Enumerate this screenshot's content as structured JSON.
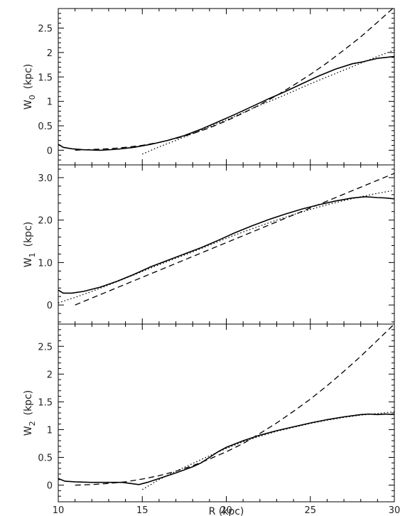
{
  "chart_data": [
    {
      "type": "line",
      "panel": "top",
      "ylabel_main": "W",
      "ylabel_sub": "0",
      "ylabel_unit": "(kpc)",
      "xlim": [
        10,
        30
      ],
      "ylim": [
        -0.3,
        2.9
      ],
      "yticks": [
        0,
        0.5,
        1,
        1.5,
        2,
        2.5
      ],
      "ytick_labels": [
        "0",
        "0.5",
        "1",
        "1.5",
        "2",
        "2.5"
      ],
      "ygrid": false,
      "series": [
        {
          "style": "solid",
          "x": [
            10,
            10.3,
            10.8,
            11.5,
            12.5,
            13.5,
            14.5,
            15.5,
            16.5,
            17.5,
            18.5,
            19.5,
            20.5,
            21.5,
            22.5,
            23.5,
            24.5,
            25.5,
            26.5,
            27.5,
            28,
            28.5,
            29,
            29.5,
            30
          ],
          "y": [
            0.12,
            0.06,
            0.03,
            0.01,
            0.0,
            0.02,
            0.06,
            0.12,
            0.2,
            0.3,
            0.43,
            0.58,
            0.73,
            0.89,
            1.05,
            1.2,
            1.36,
            1.52,
            1.66,
            1.77,
            1.8,
            1.84,
            1.88,
            1.9,
            1.92
          ]
        },
        {
          "style": "dashed",
          "x": [
            11,
            12,
            13,
            14,
            15,
            16,
            17,
            18,
            19,
            20,
            21,
            22,
            23,
            24,
            25,
            26,
            27,
            28,
            29,
            30
          ],
          "y": [
            0.0,
            0.015,
            0.03,
            0.06,
            0.1,
            0.16,
            0.24,
            0.34,
            0.46,
            0.6,
            0.76,
            0.93,
            1.12,
            1.33,
            1.55,
            1.79,
            2.05,
            2.32,
            2.62,
            2.93
          ]
        },
        {
          "style": "dotted",
          "x": [
            15,
            16,
            17,
            18,
            19,
            20,
            21,
            22,
            23,
            24,
            25,
            26,
            27,
            28,
            29,
            30
          ],
          "y": [
            -0.08,
            0.07,
            0.2,
            0.34,
            0.48,
            0.62,
            0.77,
            0.92,
            1.06,
            1.21,
            1.36,
            1.5,
            1.64,
            1.78,
            1.92,
            2.05
          ]
        }
      ]
    },
    {
      "type": "line",
      "panel": "middle",
      "ylabel_main": "W",
      "ylabel_sub": "1",
      "ylabel_unit": "(kpc)",
      "xlim": [
        10,
        30
      ],
      "ylim": [
        -0.45,
        3.3
      ],
      "yticks": [
        0,
        1.0,
        2.0,
        3.0
      ],
      "ytick_labels": [
        "0",
        "1.0",
        "2.0",
        "3.0"
      ],
      "ygrid": false,
      "series": [
        {
          "style": "solid",
          "x": [
            10,
            10.3,
            10.8,
            11.5,
            12.5,
            13.5,
            14.5,
            15.5,
            16.5,
            17.5,
            18.5,
            19.5,
            20.5,
            21.5,
            22.5,
            23.5,
            24.5,
            25.5,
            26.5,
            27.5,
            28.3,
            29,
            29.5,
            30
          ],
          "y": [
            0.35,
            0.28,
            0.28,
            0.32,
            0.42,
            0.56,
            0.72,
            0.9,
            1.05,
            1.2,
            1.35,
            1.52,
            1.7,
            1.86,
            2.01,
            2.14,
            2.26,
            2.36,
            2.45,
            2.52,
            2.55,
            2.53,
            2.52,
            2.5
          ]
        },
        {
          "style": "dashed",
          "x": [
            11,
            30
          ],
          "y": [
            0.0,
            3.1
          ]
        },
        {
          "style": "dotted",
          "x": [
            10,
            11,
            12,
            13,
            14,
            15,
            16,
            17,
            18,
            19,
            20,
            21,
            22,
            23,
            24,
            25,
            26,
            27,
            28,
            29,
            30
          ],
          "y": [
            0.05,
            0.18,
            0.32,
            0.47,
            0.63,
            0.79,
            0.95,
            1.1,
            1.25,
            1.41,
            1.57,
            1.72,
            1.86,
            2.0,
            2.13,
            2.25,
            2.36,
            2.46,
            2.55,
            2.63,
            2.7
          ]
        }
      ]
    },
    {
      "type": "line",
      "panel": "bottom",
      "ylabel_main": "W",
      "ylabel_sub": "2",
      "ylabel_unit": "(kpc)",
      "xlim": [
        10,
        30
      ],
      "ylim": [
        -0.3,
        2.9
      ],
      "yticks": [
        0,
        0.5,
        1,
        1.5,
        2,
        2.5
      ],
      "ytick_labels": [
        "0",
        "0.5",
        "1",
        "1.5",
        "2",
        "2.5"
      ],
      "xticks": [
        10,
        15,
        20,
        25,
        30
      ],
      "xtick_labels": [
        "10",
        "15",
        "20",
        "25",
        "30"
      ],
      "xlabel": "R (kpc)",
      "ygrid": false,
      "series": [
        {
          "style": "solid",
          "x": [
            10,
            10.4,
            11,
            12,
            13,
            13.8,
            14.3,
            14.8,
            15.3,
            16,
            17,
            18,
            18.5,
            19,
            19.5,
            20,
            21,
            22,
            23,
            24,
            25,
            26,
            27,
            28,
            28.5,
            29,
            29.5,
            30
          ],
          "y": [
            0.12,
            0.07,
            0.06,
            0.05,
            0.05,
            0.05,
            0.03,
            0.01,
            0.05,
            0.12,
            0.22,
            0.33,
            0.4,
            0.5,
            0.6,
            0.68,
            0.8,
            0.9,
            0.98,
            1.05,
            1.12,
            1.18,
            1.23,
            1.27,
            1.28,
            1.27,
            1.28,
            1.27
          ]
        },
        {
          "style": "dashed",
          "x": [
            11,
            12,
            13,
            14,
            15,
            16,
            17,
            18,
            19,
            20,
            21,
            22,
            23,
            24,
            25,
            26,
            27,
            28,
            29,
            30
          ],
          "y": [
            0.0,
            0.01,
            0.03,
            0.06,
            0.11,
            0.17,
            0.25,
            0.35,
            0.47,
            0.6,
            0.75,
            0.93,
            1.12,
            1.33,
            1.55,
            1.79,
            2.05,
            2.32,
            2.61,
            2.9
          ]
        },
        {
          "style": "dotted",
          "x": [
            15,
            16,
            17,
            18,
            19,
            20,
            21,
            22,
            23,
            24,
            25,
            26,
            27,
            28,
            29,
            30
          ],
          "y": [
            -0.08,
            0.1,
            0.25,
            0.39,
            0.53,
            0.66,
            0.78,
            0.88,
            0.97,
            1.04,
            1.11,
            1.17,
            1.22,
            1.26,
            1.29,
            1.32
          ]
        }
      ]
    }
  ]
}
